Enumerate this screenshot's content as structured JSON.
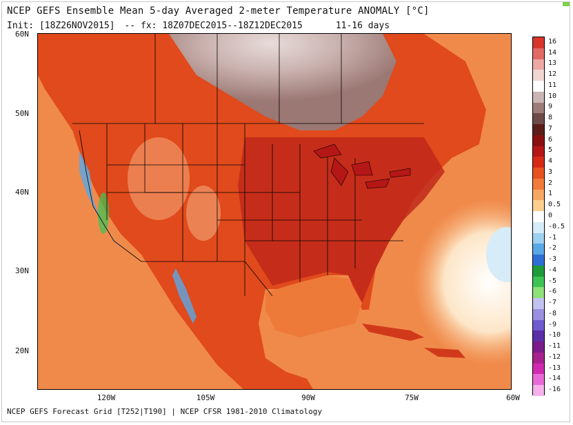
{
  "title": "NCEP GEFS Ensemble Mean 5-day Averaged 2-meter Temperature ANOMALY [°C]",
  "init": "Init: [18Z26NOV2015]",
  "forecast": "-- fx: 18Z07DEC2015--18Z12DEC2015",
  "range": "11-16 days",
  "footer": "NCEP GEFS Forecast Grid [T252|T190] | NCEP CFSR 1981-2010 Climatology",
  "lat_labels": [
    "60N",
    "50N",
    "40N",
    "30N",
    "20N"
  ],
  "lon_labels": [
    "120W",
    "105W",
    "90W",
    "75W",
    "60W"
  ],
  "colorbar": {
    "labels": [
      "16",
      "14",
      "13",
      "12",
      "11",
      "10",
      "9",
      "8",
      "7",
      "6",
      "5",
      "4",
      "3",
      "2",
      "1",
      "0.5",
      "0",
      "-0.5",
      "-1",
      "-2",
      "-3",
      "-4",
      "-5",
      "-6",
      "-7",
      "-8",
      "-9",
      "-10",
      "-11",
      "-12",
      "-13",
      "-14",
      "-16"
    ],
    "colors": [
      "#d9362b",
      "#e26a64",
      "#eba8a4",
      "#f2d6d4",
      "#ffffff",
      "#c9b5b3",
      "#9c7d79",
      "#6f4b47",
      "#5a1d18",
      "#8a1010",
      "#b51616",
      "#d62a16",
      "#e8521f",
      "#f27b3a",
      "#f8a763",
      "#fccf8e",
      "#ffffff",
      "#d6ecf8",
      "#9ed0f0",
      "#5aa8e6",
      "#2e6fd6",
      "#1f9c3a",
      "#3cc454",
      "#8de07a",
      "#c2c2f0",
      "#9a8fe0",
      "#6f5ad0",
      "#5a2fa8",
      "#7a1c8a",
      "#a8228e",
      "#d02ab0",
      "#e86ad8",
      "#f5b1ec"
    ]
  },
  "region_colors": {
    "ocean": "#f08a4b",
    "land": "#e04a1c",
    "land_dark": "#c0281a",
    "canada_north": "#cdb8b5",
    "canada_north_dark": "#a28a87",
    "cold_pacific": "#5aa8e6",
    "atlantic_cool": "#fde2bb",
    "atlantic_white": "#ffffff",
    "boundary": "#000000"
  }
}
